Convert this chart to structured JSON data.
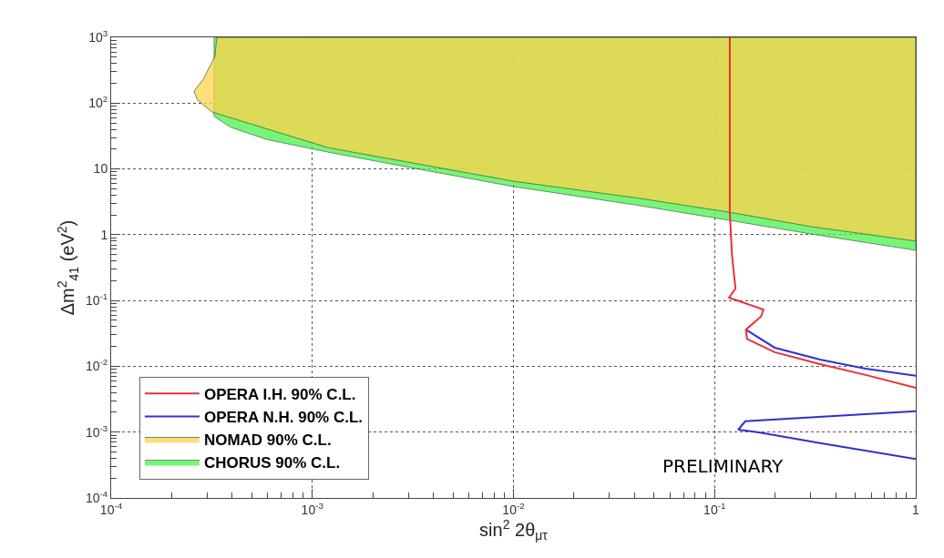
{
  "chart_data": {
    "type": "line",
    "xlabel": "sin$^{2}$ 2θ$_{μτ}$",
    "ylabel": "Δm$^{2}$$_{41}$ (eV$^{2}$)",
    "series": [
      {
        "name": "CHORUS 90% C.L.",
        "type": "area",
        "color": "#4cf24c",
        "x": [
          0.000325,
          0.000325,
          1,
          1,
          0.3,
          0.118,
          0.0415,
          0.01,
          0.00306,
          0.0012,
          0.000595,
          0.000392,
          0.000325
        ],
        "values": [
          63,
          1000,
          1000,
          0.58,
          1.03,
          1.66,
          2.8,
          5.4,
          10.5,
          18,
          28,
          43,
          63
        ]
      },
      {
        "name": "NOMAD 90% C.L.",
        "type": "area",
        "color": "#ffd24d",
        "x": [
          0.000335,
          0.000328,
          0.000287,
          0.000258,
          0.000269,
          0.000318,
          0.0012,
          0.01,
          0.0415,
          0.118,
          0.3,
          1,
          1,
          0.000335
        ],
        "values": [
          1000,
          512,
          231,
          151,
          111,
          73,
          21,
          6.5,
          3.6,
          2.2,
          1.33,
          0.8,
          1000,
          1000
        ]
      },
      {
        "name": "OPERA N.H. 90% C.L.",
        "color": "#3030d0",
        "x": [
          0.143,
          0.199,
          0.334,
          0.563,
          1,
          null,
          1,
          0.142,
          0.131,
          0.166,
          0.334,
          1
        ],
        "values": [
          0.036,
          0.0192,
          0.0127,
          0.0092,
          0.0072,
          null,
          0.00207,
          0.00146,
          0.00109,
          0.00099,
          0.00068,
          0.00039
        ]
      },
      {
        "name": "OPERA I.H. 90% C.L.",
        "color": "#e8303a",
        "x": [
          0.119,
          0.119,
          0.122,
          0.127,
          0.118,
          0.175,
          0.17,
          0.143,
          0.145,
          0.199,
          0.334,
          0.563,
          1
        ],
        "values": [
          1000,
          2.2,
          0.494,
          0.152,
          0.111,
          0.073,
          0.057,
          0.036,
          0.026,
          0.0164,
          0.0108,
          0.0074,
          0.0047
        ]
      }
    ],
    "log": "xy",
    "xlim": [
      0.0001,
      1
    ],
    "ylim": [
      0.0001,
      1000
    ],
    "xticks": [
      {
        "value": 0.0001,
        "label": "10$^{-4}$"
      },
      {
        "value": 0.001,
        "label": "10$^{-3}$"
      },
      {
        "value": 0.01,
        "label": "10$^{-2}$"
      },
      {
        "value": 0.1,
        "label": "10$^{-1}$"
      },
      1
    ],
    "yticks": [
      {
        "value": 0.0001,
        "label": "10$^{-4}$"
      },
      {
        "value": 0.001,
        "label": "10$^{-3}$"
      },
      {
        "value": 0.01,
        "label": "10$^{-2}$"
      },
      {
        "value": 0.1,
        "label": "10$^{-1}$"
      },
      1,
      10,
      {
        "value": 100,
        "label": "10$^{2}$"
      },
      {
        "value": 1000,
        "label": "10$^{3}$"
      }
    ],
    "grid": true,
    "legend": "bottom left",
    "annotations": [
      "PRELIMINARY"
    ]
  }
}
